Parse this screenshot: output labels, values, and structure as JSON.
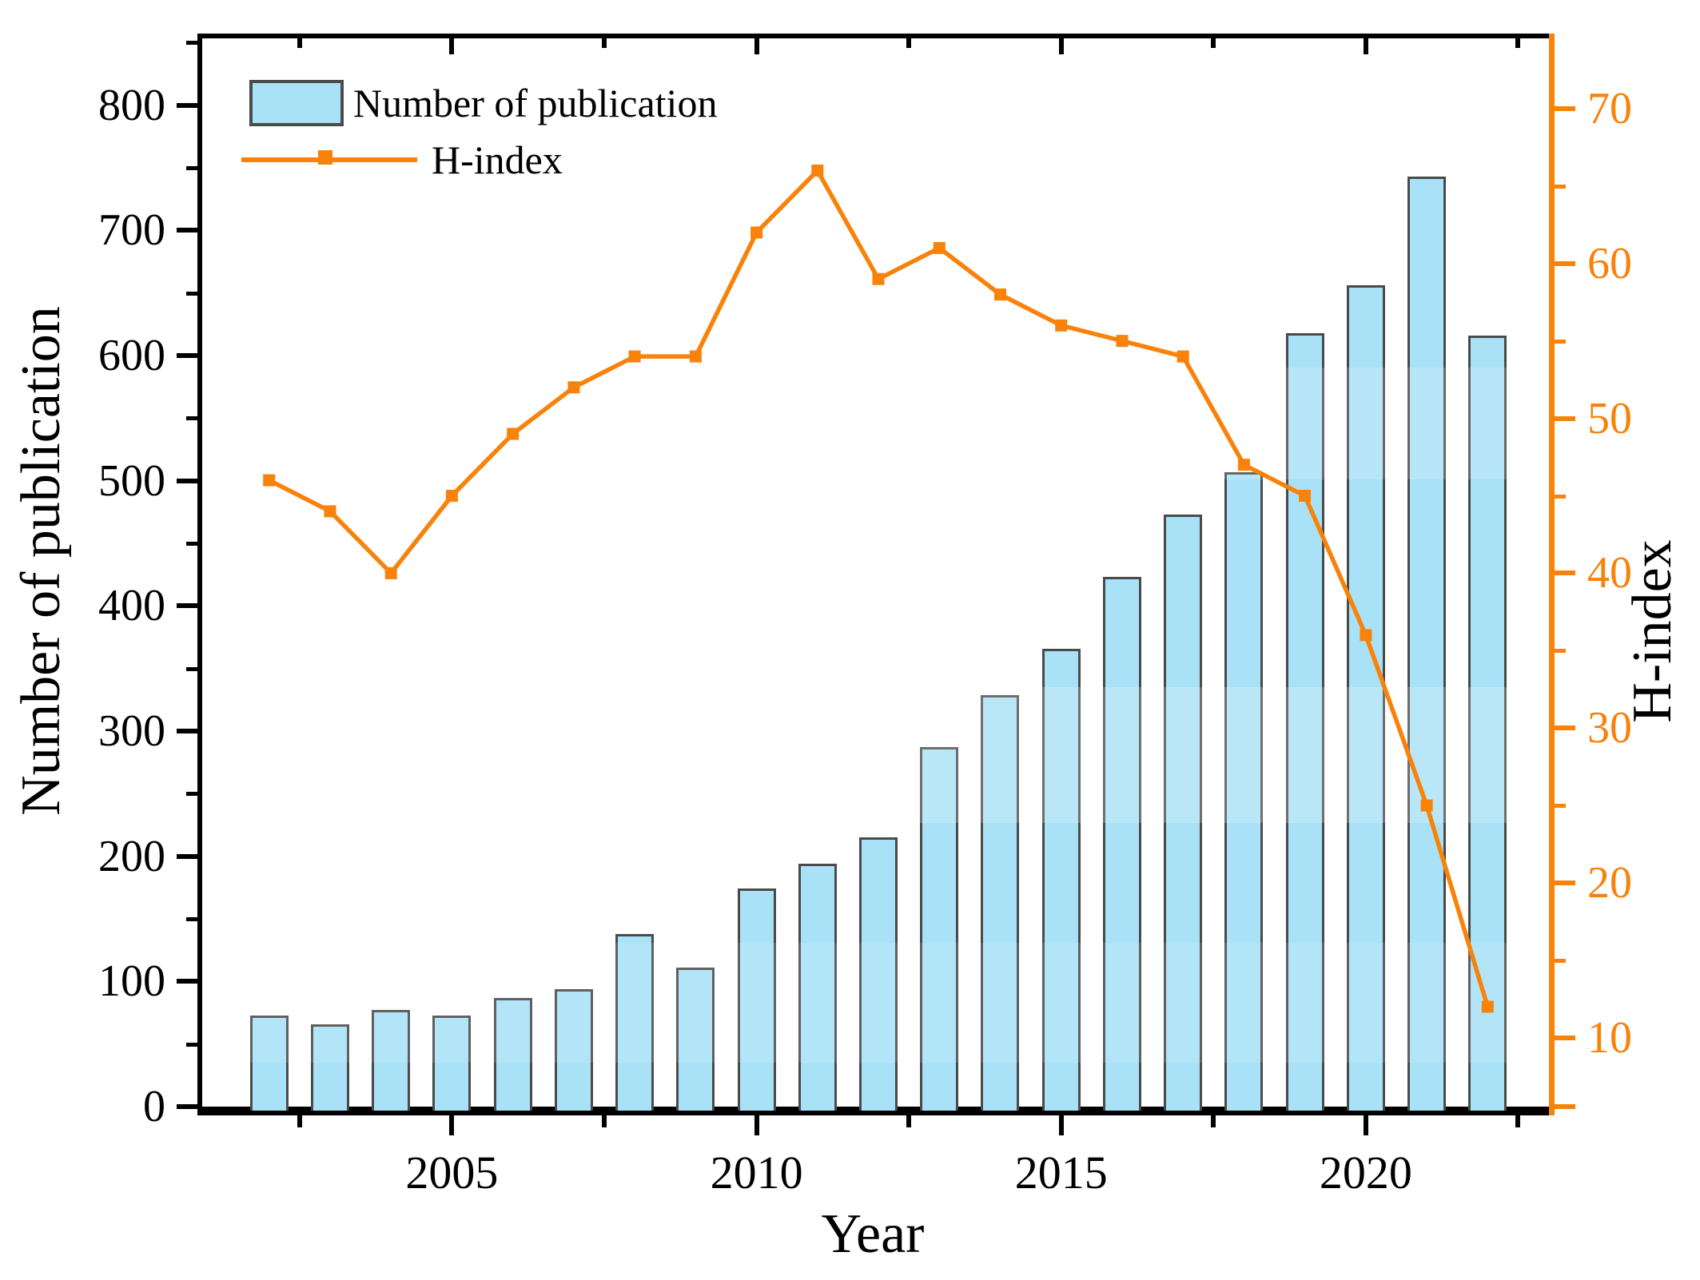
{
  "figure": {
    "x_title": "Year",
    "left_title": "Number of publication",
    "right_title": "H-index"
  },
  "legend": {
    "bar_label": "Number of publication",
    "line_label": "H-index"
  },
  "colors": {
    "bar_fill": "#a9e2f7",
    "bar_border": "#4a4a4a",
    "orange": "#f8820a",
    "black": "#000000"
  },
  "chart_data": {
    "type": "bar+line (dual axis)",
    "categories": [
      2002,
      2003,
      2004,
      2005,
      2006,
      2007,
      2008,
      2009,
      2010,
      2011,
      2012,
      2013,
      2014,
      2015,
      2016,
      2017,
      2018,
      2019,
      2020,
      2021,
      2022
    ],
    "series": [
      {
        "name": "Number of publication",
        "type": "bar",
        "axis": "left",
        "values": [
          73,
          66,
          77,
          73,
          87,
          94,
          138,
          111,
          174,
          194,
          215,
          287,
          329,
          366,
          423,
          473,
          507,
          618,
          656,
          743,
          616
        ]
      },
      {
        "name": "H-index",
        "type": "line",
        "axis": "right",
        "marker": "square",
        "values": [
          46,
          44,
          40,
          45,
          49,
          52,
          54,
          54,
          62,
          66,
          59,
          61,
          58,
          56,
          55,
          54,
          47,
          45,
          36,
          25,
          12
        ]
      }
    ],
    "x_axis": {
      "label": "Year",
      "major_ticks": [
        2005,
        2010,
        2015,
        2020
      ],
      "minor_ticks": [
        2002.5,
        2007.5,
        2012.5,
        2017.5,
        2022.5
      ]
    },
    "left_axis": {
      "label": "Number of publication",
      "range": [
        0,
        853.5
      ],
      "major_ticks": [
        0,
        100,
        200,
        300,
        400,
        500,
        600,
        700,
        800
      ],
      "minor_ticks": [
        50,
        150,
        250,
        350,
        450,
        550,
        650,
        750,
        850
      ]
    },
    "right_axis": {
      "label": "H-index",
      "range": [
        5.55,
        74.55
      ],
      "major_ticks": [
        10,
        20,
        30,
        40,
        50,
        60,
        70
      ],
      "minor_ticks": [
        15,
        25,
        35,
        45,
        55,
        65
      ]
    },
    "grid": false,
    "legend_position": "top-left inside plot"
  }
}
